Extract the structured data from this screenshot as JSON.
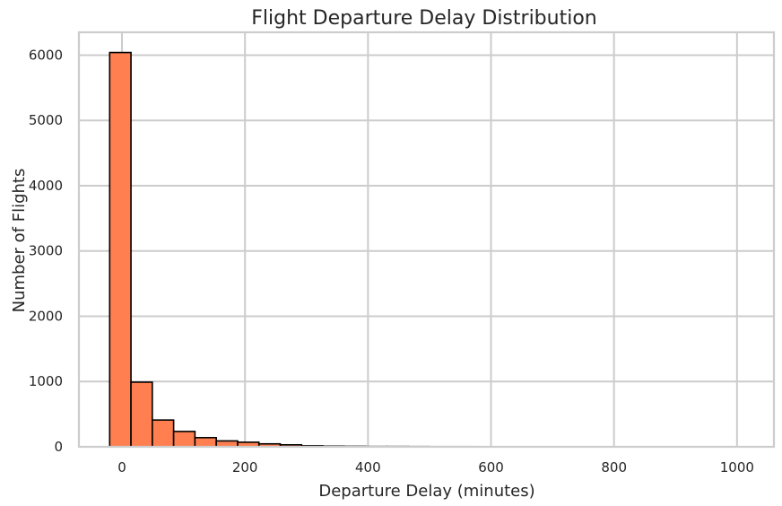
{
  "chart_data": {
    "type": "bar",
    "title": "Flight Departure Delay Distribution",
    "xlabel": "Departure Delay (minutes)",
    "ylabel": "Number of Flights",
    "xlim": [
      -70,
      1060
    ],
    "ylim": [
      0,
      6350
    ],
    "xticks": [
      0,
      200,
      400,
      600,
      800,
      1000
    ],
    "yticks": [
      0,
      1000,
      2000,
      3000,
      4000,
      5000,
      6000
    ],
    "grid": true,
    "bar_color": "#ff7f50",
    "edge_color": "#000000",
    "bins": {
      "start": -20,
      "width": 34.67,
      "counts": [
        6040,
        990,
        410,
        235,
        140,
        90,
        70,
        45,
        30,
        15,
        10,
        8,
        5,
        5,
        4,
        3,
        3,
        2,
        2,
        2,
        1,
        1,
        1,
        1,
        1,
        1,
        1,
        1,
        1,
        1
      ]
    }
  }
}
